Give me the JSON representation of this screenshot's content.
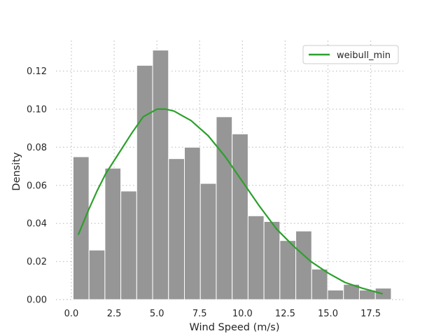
{
  "chart_data": {
    "type": "bar",
    "title": "",
    "xlabel": "Wind Speed (m/s)",
    "ylabel": "Density",
    "xlim": [
      -0.9,
      19.4
    ],
    "ylim": [
      0,
      0.136
    ],
    "xticks": [
      0.0,
      2.5,
      5.0,
      7.5,
      10.0,
      12.5,
      15.0,
      17.5
    ],
    "xtick_labels": [
      "0.0",
      "2.5",
      "5.0",
      "7.5",
      "10.0",
      "12.5",
      "15.0",
      "17.5"
    ],
    "yticks": [
      0.0,
      0.02,
      0.04,
      0.06,
      0.08,
      0.1,
      0.12
    ],
    "ytick_labels": [
      "0.00",
      "0.02",
      "0.04",
      "0.06",
      "0.08",
      "0.10",
      "0.12"
    ],
    "grid": true,
    "grid_style": "dotted",
    "legend_position": "top-right",
    "histogram": {
      "color": "#969696",
      "bin_edges": [
        0.1,
        1.03,
        1.96,
        2.89,
        3.82,
        4.75,
        5.68,
        6.61,
        7.54,
        8.47,
        9.4,
        10.33,
        11.26,
        12.19,
        13.12,
        14.05,
        14.98,
        15.91,
        16.84,
        17.77,
        18.7
      ],
      "values": [
        0.075,
        0.026,
        0.069,
        0.057,
        0.123,
        0.131,
        0.074,
        0.08,
        0.061,
        0.096,
        0.087,
        0.044,
        0.041,
        0.031,
        0.036,
        0.016,
        0.005,
        0.008,
        0.005,
        0.006
      ]
    },
    "series": [
      {
        "name": "weibull_min",
        "color": "#2ca02c",
        "x": [
          0.4,
          1.0,
          1.5,
          2.0,
          2.5,
          3.0,
          3.5,
          4.2,
          5.0,
          5.5,
          6.0,
          7.0,
          8.0,
          9.0,
          10.0,
          11.0,
          12.0,
          13.0,
          14.0,
          15.0,
          16.0,
          17.0,
          18.2
        ],
        "y": [
          0.034,
          0.047,
          0.057,
          0.066,
          0.073,
          0.08,
          0.087,
          0.096,
          0.1,
          0.1,
          0.099,
          0.094,
          0.086,
          0.075,
          0.062,
          0.049,
          0.037,
          0.028,
          0.02,
          0.014,
          0.009,
          0.006,
          0.003
        ]
      }
    ]
  }
}
